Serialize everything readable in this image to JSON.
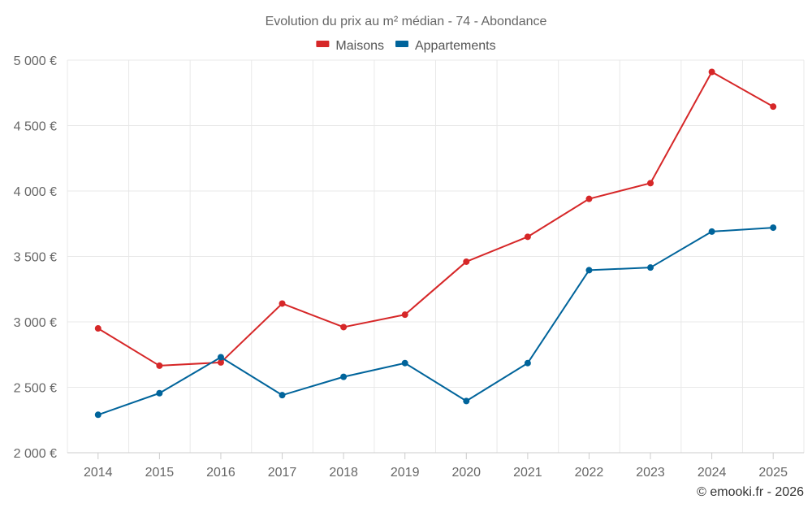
{
  "chart_data": {
    "type": "line",
    "title": "Evolution du prix au m² médian - 74 - Abondance",
    "xlabel": "",
    "ylabel": "",
    "categories": [
      "2014",
      "2015",
      "2016",
      "2017",
      "2018",
      "2019",
      "2020",
      "2021",
      "2022",
      "2023",
      "2024",
      "2025"
    ],
    "ylim": [
      2000,
      5000
    ],
    "yticks": [
      2000,
      2500,
      3000,
      3500,
      4000,
      4500,
      5000
    ],
    "ytick_labels": [
      "2 000 €",
      "2 500 €",
      "3 000 €",
      "3 500 €",
      "4 000 €",
      "4 500 €",
      "5 000 €"
    ],
    "grid": true,
    "legend_position": "top-center",
    "series": [
      {
        "name": "Maisons",
        "color": "#d62728",
        "values": [
          2950,
          2665,
          2690,
          3140,
          2960,
          3055,
          3460,
          3650,
          3940,
          4060,
          4910,
          4645
        ]
      },
      {
        "name": "Appartements",
        "color": "#00649b",
        "values": [
          2290,
          2455,
          2730,
          2440,
          2580,
          2685,
          2395,
          2685,
          3395,
          3415,
          3690,
          3720
        ]
      }
    ]
  },
  "credit": "© emooki.fr - 2026"
}
